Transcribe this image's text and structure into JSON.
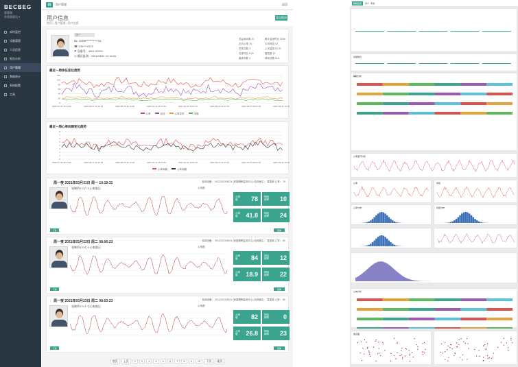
{
  "sidebar": {
    "brand": "BECBEG",
    "sub1": "管理端",
    "sub2": "系统管理员 ▾",
    "items": [
      {
        "label": "实时监控"
      },
      {
        "label": "设备管理"
      },
      {
        "label": "人员信息"
      },
      {
        "label": "报告分析"
      },
      {
        "label": "用户管理",
        "active": true
      },
      {
        "label": "数据统计"
      },
      {
        "label": "系统配置"
      },
      {
        "label": "工具"
      }
    ]
  },
  "topbar": {
    "tab": "首",
    "crumb": "用户管理",
    "back": "返回"
  },
  "header": {
    "title": "用户信息",
    "crumb": "首页 / 用户管理 / 用户信息",
    "export": "导出报告"
  },
  "profile": {
    "name": "张**",
    "id": "ID: 3408**********72",
    "phone": "☎ 135****0375",
    "device": "⚑ 设备号：4001-20201",
    "time": "◷ 最近监测：2021/03/31 10:19:31",
    "stats": [
      [
        "总监测次数",
        "12"
      ],
      [
        "累计监测时长",
        "318h"
      ],
      [
        "平均心率",
        "76"
      ],
      [
        "平均呼吸",
        "12"
      ],
      [
        "异常次数",
        "3"
      ],
      [
        "上次监测",
        "03-31"
      ],
      [
        "在床时长",
        "8.2h"
      ],
      [
        "报告数",
        "12"
      ],
      [
        "离床次数",
        "4"
      ],
      [
        "体动次数",
        "112"
      ]
    ]
  },
  "chart1": {
    "title": "最近一周体征变化趋势",
    "yticks": [
      "120",
      "100",
      "80",
      "60",
      "40",
      "20",
      "0"
    ],
    "xticks": [
      "2020-07-30 16:14:49",
      "2020-09-17 12:14:34",
      "2020-09-15 11:14:28",
      "2020-10-14 15:14:53",
      "2021-01-12 16:51:10",
      "2021-02-20 11:27:25",
      "2021-03-27 08:21:15",
      "2021-03-31 10:19:31"
    ],
    "legend": [
      "心率",
      "血压",
      "心率变异",
      "呼吸"
    ],
    "colors": [
      "#d9534f",
      "#9b59b6",
      "#e6a23c",
      "#5cb85c"
    ]
  },
  "chart2": {
    "title": "最近一周心率间期变化趋势",
    "yticks": [
      "8",
      "7",
      "6",
      "5",
      "4",
      "3",
      "2",
      "1",
      "0"
    ],
    "xticks": [
      "2020-07-30 16:14:49",
      "2020-09-17 12:14:34",
      "2020-09-15 11:14:28",
      "2020-10-14 15:14:53",
      "2021-01-12 16:51:10",
      "2021-02-20 11:27:25",
      "2021-03-27 08:21:15",
      "2021-03-31 10:19:31"
    ],
    "legend": [
      "心率间期",
      "心率间期"
    ],
    "colors": [
      "#d9534f",
      "#333333"
    ]
  },
  "ecgs": [
    {
      "title": "周一夜 2021年03月31日 周一 10:19:31",
      "device": "检测设备：",
      "deviceVal": "0912201008021 (家庭睡眠监测中心)",
      "doctor": "检测医生：",
      "doctorVal": "袁国政",
      "rate": "心率：",
      "rateVal": "76",
      "note": "张晓四170六十心电描记",
      "wavelegend": "心电图",
      "m": [
        [
          "心率",
          "值",
          "78"
        ],
        [
          "呼吸",
          "频率",
          "10"
        ],
        [
          "心率",
          "值",
          "41.8"
        ],
        [
          "呼吸",
          "频率",
          "24"
        ]
      ],
      "dl": "下载",
      "detail": "查看"
    },
    {
      "title": "周一夜 2021年03月23日 周二 08:06:23",
      "device": "检测设备：",
      "deviceVal": "0912201008021 (家庭睡眠监测中心)",
      "doctor": "检测医生：",
      "doctorVal": "袁国政",
      "rate": "心率：",
      "rateVal": "80",
      "note": "张晓四170七十心电描记",
      "wavelegend": "心电图",
      "m": [
        [
          "心率",
          "值",
          "84"
        ],
        [
          "呼吸",
          "频率",
          "12"
        ],
        [
          "心率",
          "值",
          "18.9"
        ],
        [
          "呼吸",
          "频率",
          "22"
        ]
      ],
      "dl": "下载",
      "detail": "查看"
    },
    {
      "title": "周一夜 2021年03月23日 周二 08:03:23",
      "device": "检测设备：",
      "deviceVal": "0912201008021 (家庭睡眠监测中心)",
      "doctor": "检测医生：",
      "doctorVal": "袁国政",
      "rate": "心率：",
      "rateVal": "80",
      "note": "张晓四170十七心电描记",
      "wavelegend": "心电图",
      "m": [
        [
          "心率",
          "值",
          "82"
        ],
        [
          "呼吸",
          "频率",
          "0"
        ],
        [
          "心率",
          "值",
          "26.8"
        ],
        [
          "呼吸",
          "频率",
          "23"
        ]
      ],
      "dl": "下载",
      "detail": "查看"
    }
  ],
  "pager": [
    "首页",
    "上页",
    "1",
    "2",
    "3",
    "4",
    "5",
    "6",
    "7",
    "8",
    "9",
    "10",
    "下页",
    "尾页"
  ],
  "right": {
    "tab": "睡眠监测",
    "crumb": "用户 / 报告",
    "sections": [
      "基础信息",
      "睡眠分析",
      "心率变异分析",
      "心率",
      "呼吸",
      "心率分布",
      "呼吸分布",
      "心电分析",
      "体动分析",
      "散点图"
    ]
  }
}
